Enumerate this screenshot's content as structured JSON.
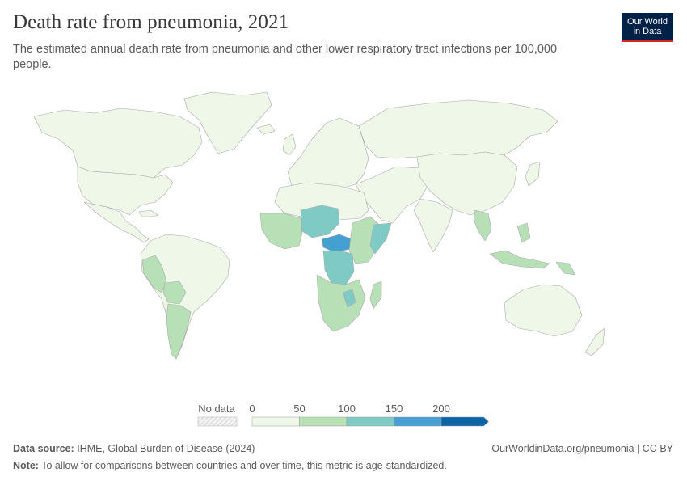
{
  "header": {
    "title": "Death rate from pneumonia, 2021",
    "subtitle": "The estimated annual death rate from pneumonia and other lower respiratory tract infections per 100,000 people."
  },
  "logo": {
    "line1": "Our World",
    "line2": "in Data",
    "bg_color": "#002147",
    "accent_color": "#ce261e"
  },
  "legend": {
    "no_data_label": "No data",
    "ticks": [
      "0",
      "50",
      "100",
      "150",
      "200"
    ],
    "bins": [
      {
        "range": [
          0,
          50
        ],
        "color": "#eef7e8"
      },
      {
        "range": [
          50,
          100
        ],
        "color": "#b7e0b7"
      },
      {
        "range": [
          100,
          150
        ],
        "color": "#7fcac5"
      },
      {
        "range": [
          150,
          200
        ],
        "color": "#44a0d0"
      },
      {
        "range": [
          200,
          null
        ],
        "color": "#0b64a6"
      }
    ]
  },
  "footer": {
    "source_label": "Data source:",
    "source_text": "IHME, Global Burden of Disease (2024)",
    "url": "OurWorldinData.org/pneumonia | CC BY",
    "note_label": "Note:",
    "note_text": "To allow for comparisons between countries and over time, this metric is age-standardized."
  },
  "map_regions": [
    {
      "name": "North America",
      "bin": "0-50"
    },
    {
      "name": "South America",
      "bin": "0-50"
    },
    {
      "name": "Peru",
      "bin": "50-100"
    },
    {
      "name": "Bolivia",
      "bin": "50-100"
    },
    {
      "name": "Argentina",
      "bin": "50-100"
    },
    {
      "name": "Europe",
      "bin": "0-50"
    },
    {
      "name": "Russia",
      "bin": "0-50"
    },
    {
      "name": "Asia",
      "bin": "0-50"
    },
    {
      "name": "Southeast Asia",
      "bin": "50-100"
    },
    {
      "name": "Australia",
      "bin": "0-50"
    },
    {
      "name": "West Africa",
      "bin": "50-100"
    },
    {
      "name": "Sahel",
      "bin": "100-150"
    },
    {
      "name": "Central African Republic",
      "bin": "150-200"
    },
    {
      "name": "DR Congo",
      "bin": "100-150"
    },
    {
      "name": "Somalia",
      "bin": "100-150"
    },
    {
      "name": "Southern Africa",
      "bin": "50-100"
    }
  ]
}
